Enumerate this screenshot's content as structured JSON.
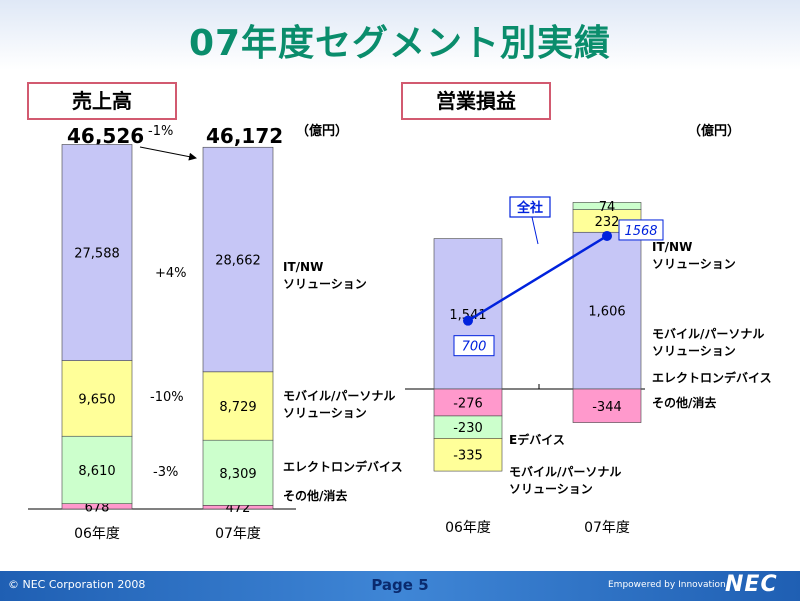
{
  "title": "07年度セグメント別実績",
  "sales": {
    "header": "売上高",
    "unit": "（億円）",
    "total_06": "46,526",
    "total_07": "46,172",
    "change_total": "-1%",
    "changes": [
      "+4%",
      "-10%",
      "-3%"
    ],
    "segment_labels": [
      [
        "IT/NW",
        "ソリューション"
      ],
      [
        "モバイル/パーソナル",
        "ソリューション"
      ],
      [
        "エレクトロンデバイス"
      ],
      [
        "その他/消去"
      ]
    ]
  },
  "op": {
    "header": "営業損益",
    "unit": "（億円）",
    "zensha_label": "全社",
    "right_labels": [
      [
        "IT/NW",
        "ソリューション"
      ],
      [
        "モバイル/パーソナル",
        "ソリューション"
      ],
      [
        "エレクトロンデバイス"
      ],
      [
        "その他/消去"
      ]
    ],
    "left_labels": [
      [
        "Eデバイス"
      ],
      [
        "モバイル/パーソナル",
        "ソリューション"
      ]
    ]
  },
  "footer": {
    "copyright": "© NEC Corporation 2008",
    "page": "Page 5",
    "powered": "Empowered by Innovation",
    "logo": "NEC"
  },
  "colors": {
    "it_nw": "#c6c6f6",
    "mobile": "#ffff99",
    "electron": "#ccffcc",
    "other": "#ff99cc",
    "title": "#0a8d6c",
    "line": "#0022dd"
  },
  "chart_data": [
    {
      "type": "bar",
      "stacked": true,
      "title": "売上高",
      "unit": "（億円）",
      "categories": [
        "06年度",
        "07年度"
      ],
      "series": [
        {
          "name": "IT/NWソリューション",
          "values": [
            27588,
            28662
          ],
          "labels": [
            "27,588",
            "28,662"
          ],
          "color": "#c6c6f6"
        },
        {
          "name": "モバイル/パーソナルソリューション",
          "values": [
            9650,
            8729
          ],
          "labels": [
            "9,650",
            "8,729"
          ],
          "color": "#ffff99"
        },
        {
          "name": "エレクトロンデバイス",
          "values": [
            8610,
            8309
          ],
          "labels": [
            "8,610",
            "8,309"
          ],
          "color": "#ccffcc"
        },
        {
          "name": "その他/消去",
          "values": [
            678,
            472
          ],
          "labels": [
            "678",
            "472"
          ],
          "color": "#ff99cc"
        }
      ],
      "totals": [
        46526,
        46172
      ],
      "change_labels": [
        "+4%",
        "-10%",
        "-3%"
      ]
    },
    {
      "type": "bar",
      "stacked": true,
      "title": "営業損益",
      "unit": "（億円）",
      "categories": [
        "06年度",
        "07年度"
      ],
      "bars": [
        {
          "category": "06年度",
          "segments": [
            {
              "name": "IT/NWソリューション",
              "value": 1541,
              "label": "1,541",
              "color": "#c6c6f6"
            },
            {
              "name": "その他/消去",
              "value": -276,
              "label": "-276",
              "color": "#ff99cc"
            },
            {
              "name": "Eデバイス",
              "value": -230,
              "label": "-230",
              "color": "#ccffcc"
            },
            {
              "name": "モバイル/パーソナルソリューション",
              "value": -335,
              "label": "-335",
              "color": "#ffff99"
            }
          ]
        },
        {
          "category": "07年度",
          "segments": [
            {
              "name": "IT/NWソリューション",
              "value": 1606,
              "label": "1,606",
              "color": "#c6c6f6"
            },
            {
              "name": "モバイル/パーソナルソリューション",
              "value": 232,
              "label": "232",
              "color": "#ffff99"
            },
            {
              "name": "エレクトロンデバイス",
              "value": 74,
              "label": "74",
              "color": "#ccffcc"
            },
            {
              "name": "その他/消去",
              "value": -344,
              "label": "-344",
              "color": "#ff99cc"
            }
          ]
        }
      ],
      "line": {
        "name": "全社",
        "values": [
          700,
          1568
        ],
        "labels": [
          "700",
          "1568"
        ],
        "color": "#0022dd"
      }
    }
  ]
}
